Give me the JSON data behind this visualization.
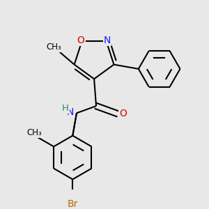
{
  "background_color": "#e8e8e8",
  "atom_colors": {
    "C": "#000000",
    "N": "#1a1aff",
    "O": "#dd0000",
    "Br": "#bb6600",
    "H": "#2e8b57"
  },
  "bond_color": "#000000",
  "bond_width": 1.5,
  "figsize": [
    3.0,
    3.0
  ],
  "dpi": 100
}
